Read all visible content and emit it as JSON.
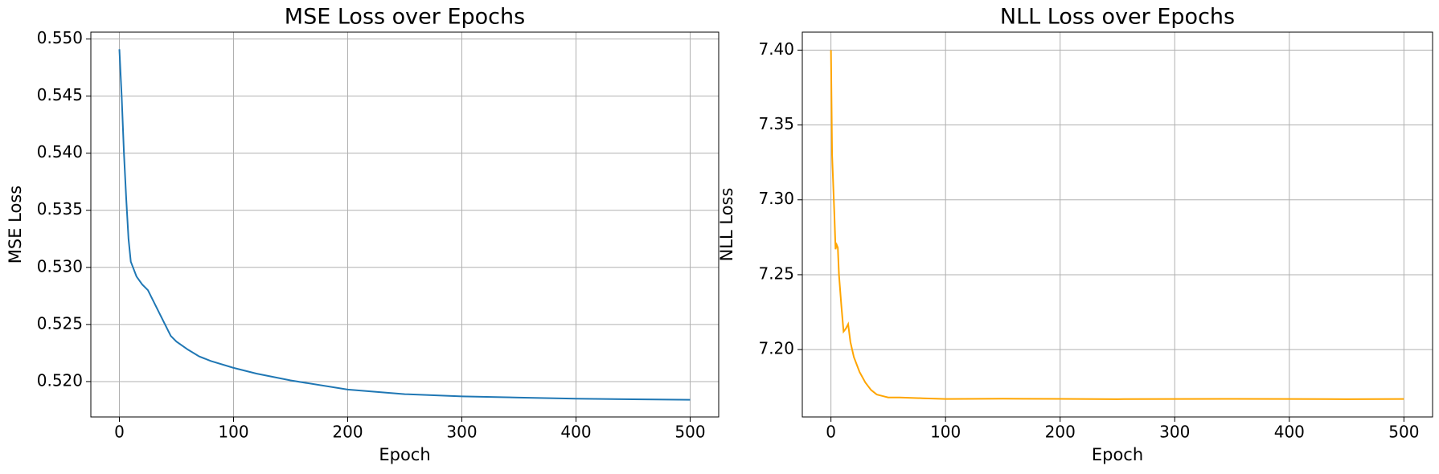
{
  "chart_data": [
    {
      "type": "line",
      "title": "MSE Loss over Epochs",
      "x_label": "Epoch",
      "y_label": "MSE Loss",
      "x": [
        0,
        2,
        4,
        6,
        8,
        10,
        15,
        20,
        25,
        30,
        35,
        40,
        45,
        50,
        60,
        70,
        80,
        100,
        120,
        150,
        200,
        250,
        300,
        350,
        400,
        450,
        500
      ],
      "values": [
        0.5491,
        0.545,
        0.54,
        0.536,
        0.5325,
        0.5305,
        0.5292,
        0.5285,
        0.528,
        0.527,
        0.526,
        0.525,
        0.524,
        0.5235,
        0.5228,
        0.5222,
        0.5218,
        0.5212,
        0.5207,
        0.5201,
        0.5193,
        0.5189,
        0.5187,
        0.5186,
        0.5185,
        0.51845,
        0.5184
      ],
      "color": "#1f77b4",
      "grid": true,
      "xlim": [
        -25,
        525
      ],
      "xticks": [
        0,
        100,
        200,
        300,
        400,
        500
      ],
      "ylim": [
        0.5169,
        0.5506
      ],
      "yticks": [
        {
          "value": 0.52,
          "label": "0.520"
        },
        0.525,
        {
          "value": 0.53,
          "label": "0.530"
        },
        0.535,
        {
          "value": 0.54,
          "label": "0.540"
        },
        0.545,
        {
          "value": 0.55,
          "label": "0.550"
        }
      ]
    },
    {
      "type": "line",
      "title": "NLL Loss over Epochs",
      "x_label": "Epoch",
      "y_label": "NLL Loss",
      "x": [
        0,
        1,
        3,
        4,
        5,
        6,
        7,
        9,
        11,
        13,
        15,
        17,
        20,
        25,
        30,
        35,
        40,
        45,
        50,
        60,
        80,
        100,
        150,
        200,
        250,
        300,
        350,
        400,
        450,
        500
      ],
      "values": [
        7.4,
        7.33,
        7.29,
        7.267,
        7.27,
        7.268,
        7.25,
        7.23,
        7.212,
        7.214,
        7.217,
        7.205,
        7.195,
        7.185,
        7.178,
        7.173,
        7.17,
        7.169,
        7.168,
        7.168,
        7.1675,
        7.167,
        7.1672,
        7.1671,
        7.1669,
        7.167,
        7.1671,
        7.167,
        7.1669,
        7.167
      ],
      "color": "#ffa500",
      "grid": true,
      "xlim": [
        -25,
        525
      ],
      "xticks": [
        0,
        100,
        200,
        300,
        400,
        500
      ],
      "ylim": [
        7.155,
        7.412
      ],
      "yticks": [
        {
          "value": 7.2,
          "label": "7.20"
        },
        7.25,
        {
          "value": 7.3,
          "label": "7.30"
        },
        7.35,
        {
          "value": 7.4,
          "label": "7.40"
        }
      ]
    }
  ]
}
